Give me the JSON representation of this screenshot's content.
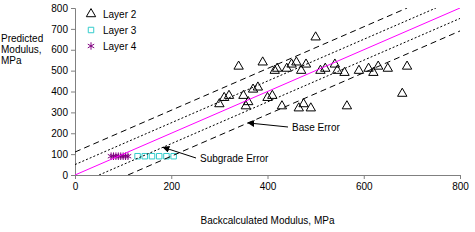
{
  "chart_data": {
    "type": "scatter",
    "xlabel": "Backcalculated Modulus, MPa",
    "ylabel": "Predicted Modulus, MPa",
    "xlim": [
      0,
      800
    ],
    "ylim": [
      0,
      800
    ],
    "xticks": [
      0,
      200,
      400,
      600,
      800
    ],
    "yticks": [
      0,
      100,
      200,
      300,
      400,
      500,
      600,
      700,
      800
    ],
    "grid": false,
    "legend": "upper left",
    "series": [
      {
        "name": "Layer 2",
        "type": "scatter",
        "marker": "triangle",
        "color": "#000000",
        "x": [
          300,
          310,
          320,
          340,
          350,
          355,
          360,
          370,
          380,
          390,
          400,
          410,
          415,
          420,
          430,
          440,
          450,
          460,
          465,
          470,
          475,
          480,
          490,
          500,
          510,
          520,
          540,
          545,
          560,
          565,
          590,
          610,
          620,
          630,
          650,
          680,
          690
        ],
        "values": [
          340,
          370,
          380,
          520,
          380,
          330,
          350,
          410,
          420,
          540,
          370,
          380,
          500,
          510,
          330,
          510,
          530,
          540,
          320,
          500,
          340,
          530,
          320,
          660,
          500,
          510,
          530,
          500,
          490,
          330,
          500,
          510,
          490,
          520,
          510,
          390,
          520
        ]
      },
      {
        "name": "Layer 3",
        "type": "scatter",
        "marker": "square",
        "color": "#33cccc",
        "x": [
          130,
          145,
          160,
          175,
          190,
          205
        ],
        "values": [
          90,
          90,
          90,
          90,
          90,
          90
        ]
      },
      {
        "name": "Layer 4",
        "type": "scatter",
        "marker": "asterisk",
        "color": "#800080",
        "x": [
          75,
          80,
          85,
          90,
          95,
          100,
          105,
          110
        ],
        "values": [
          90,
          90,
          90,
          90,
          90,
          90,
          90,
          90
        ]
      },
      {
        "type": "line",
        "line_style": "solid",
        "color": "#ff00ff",
        "x": [
          0,
          800
        ],
        "values": [
          0,
          800
        ]
      },
      {
        "type": "line",
        "line_style": "dashed",
        "color": "#000000",
        "x": [
          0,
          690
        ],
        "values": [
          110,
          800
        ]
      },
      {
        "type": "line",
        "line_style": "dashed",
        "color": "#000000",
        "x": [
          110,
          800
        ],
        "values": [
          0,
          690
        ]
      },
      {
        "type": "line",
        "line_style": "dotted",
        "color": "#000000",
        "x": [
          0,
          750
        ],
        "values": [
          50,
          800
        ]
      },
      {
        "type": "line",
        "line_style": "dotted",
        "color": "#000000",
        "x": [
          50,
          800
        ],
        "values": [
          0,
          750
        ]
      }
    ],
    "annotations": [
      {
        "text": "Base Error"
      },
      {
        "text": "Subgrade Error"
      }
    ]
  }
}
